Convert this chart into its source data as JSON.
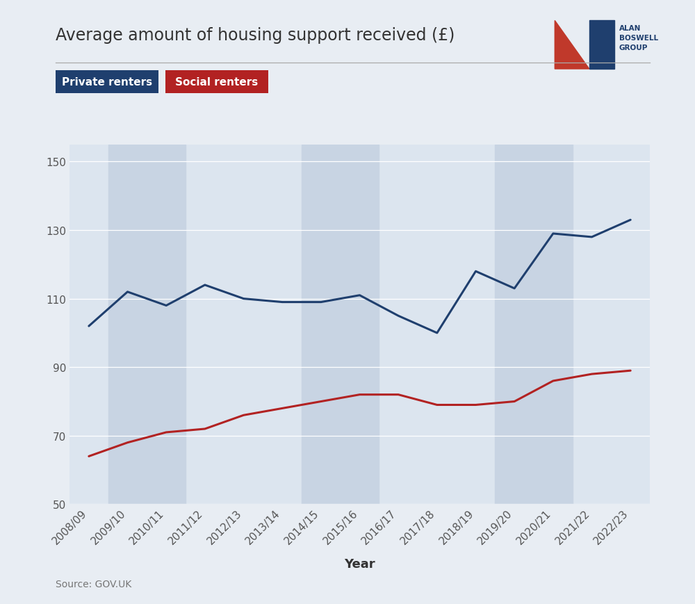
{
  "title": "Average amount of housing support received (£)",
  "xlabel": "Year",
  "source": "Source: GOV.UK",
  "years": [
    "2008/09",
    "2009/10",
    "2010/11",
    "2011/12",
    "2012/13",
    "2013/14",
    "2014/15",
    "2015/16",
    "2016/17",
    "2017/18",
    "2018/19",
    "2019/20",
    "2020/21",
    "2021/22",
    "2022/23"
  ],
  "private_renters": [
    102,
    112,
    108,
    114,
    110,
    109,
    109,
    111,
    105,
    100,
    118,
    113,
    129,
    128,
    133
  ],
  "social_renters": [
    64,
    68,
    71,
    72,
    76,
    78,
    80,
    82,
    82,
    79,
    79,
    80,
    86,
    88,
    89
  ],
  "private_color": "#1f3f6e",
  "social_color": "#b22222",
  "bg_color": "#e8edf3",
  "plot_bg_color": "#dce5ef",
  "band_bg_color": "#c8d4e3",
  "ylim": [
    50,
    155
  ],
  "yticks": [
    50,
    70,
    90,
    110,
    130,
    150
  ],
  "private_label": "Private renters",
  "social_label": "Social renters",
  "band_ranges": [
    [
      1,
      2
    ],
    [
      6,
      7
    ],
    [
      11,
      12
    ]
  ],
  "title_fontsize": 17,
  "tick_fontsize": 11,
  "line_width": 2.2,
  "private_box_color": "#1f3f6e",
  "social_box_color": "#b22222"
}
